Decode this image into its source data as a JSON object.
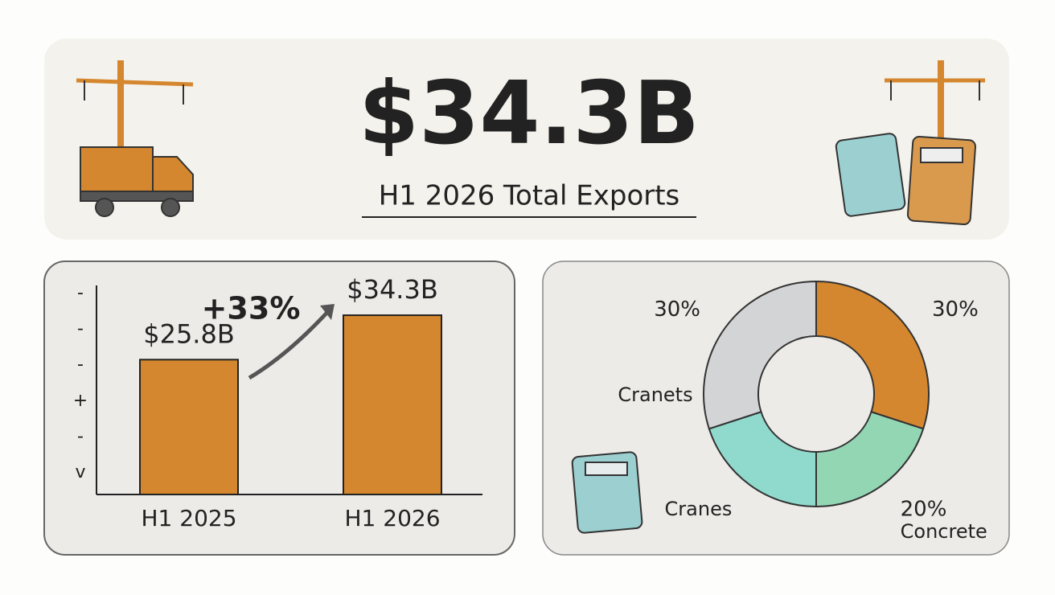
{
  "header": {
    "value": "$34.3B",
    "subtitle": "H1 2026 Total Exports"
  },
  "chart_data": [
    {
      "type": "bar",
      "categories": [
        "H1 2025",
        "H1 2026"
      ],
      "values": [
        25.8,
        34.3
      ],
      "value_labels": [
        "$25.8B",
        "$34.3B"
      ],
      "color": "#d4872e",
      "annotation": "+33%",
      "ylim": [
        0,
        40
      ],
      "axis_marks": [
        "-",
        "-",
        "-",
        "+",
        "-",
        "v"
      ]
    },
    {
      "type": "pie",
      "categories": [
        null,
        "Concrete",
        "Cranes",
        null
      ],
      "values": [
        30,
        20,
        20,
        30
      ],
      "value_labels": [
        "30%",
        "20%",
        null,
        "30%"
      ],
      "colors": [
        "#d4872e",
        "#93d6b4",
        "#90dacd",
        "#d3d4d6"
      ],
      "annotation": "Cranets"
    }
  ]
}
